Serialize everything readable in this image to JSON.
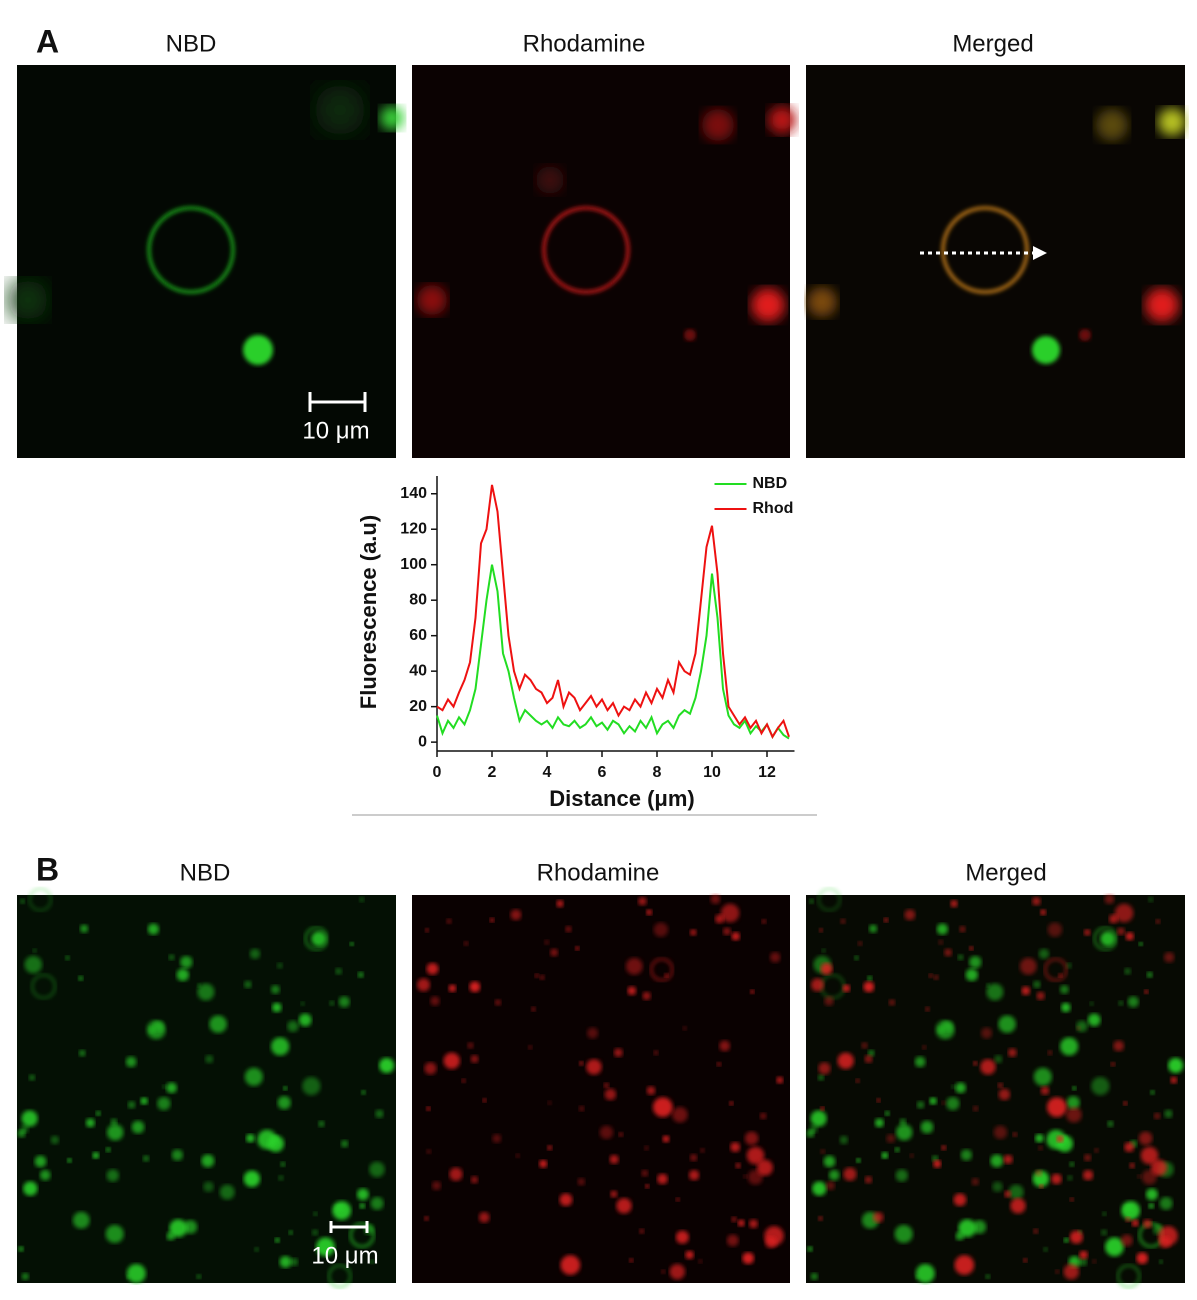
{
  "panel_a": {
    "label": "A",
    "titles": [
      "NBD",
      "Rhodamine",
      "Merged"
    ],
    "scale_bar": "10 μm"
  },
  "chart_data": {
    "type": "line",
    "x_label": "Distance (μm)",
    "y_label": "Fluorescence (a.u)",
    "x": [
      0,
      0.2,
      0.4,
      0.6,
      0.8,
      1.0,
      1.2,
      1.4,
      1.6,
      1.8,
      2.0,
      2.2,
      2.4,
      2.6,
      2.8,
      3.0,
      3.2,
      3.4,
      3.6,
      3.8,
      4.0,
      4.2,
      4.4,
      4.6,
      4.8,
      5.0,
      5.2,
      5.4,
      5.6,
      5.8,
      6.0,
      6.2,
      6.4,
      6.6,
      6.8,
      7.0,
      7.2,
      7.4,
      7.6,
      7.8,
      8.0,
      8.2,
      8.4,
      8.6,
      8.8,
      9.0,
      9.2,
      9.4,
      9.6,
      9.8,
      10.0,
      10.2,
      10.4,
      10.6,
      10.8,
      11.0,
      11.2,
      11.4,
      11.6,
      11.8,
      12.0,
      12.2,
      12.4,
      12.6,
      12.8
    ],
    "series": [
      {
        "name": "NBD",
        "color": "#22dd22",
        "values": [
          15,
          5,
          12,
          8,
          14,
          10,
          18,
          30,
          55,
          80,
          100,
          85,
          50,
          40,
          25,
          12,
          18,
          15,
          12,
          10,
          12,
          8,
          14,
          10,
          9,
          12,
          8,
          10,
          14,
          9,
          11,
          7,
          12,
          10,
          5,
          9,
          6,
          12,
          8,
          14,
          5,
          10,
          12,
          8,
          15,
          18,
          16,
          25,
          40,
          60,
          95,
          70,
          30,
          15,
          10,
          8,
          12,
          5,
          9,
          6,
          10,
          3,
          8,
          4,
          2
        ]
      },
      {
        "name": "Rhod",
        "color": "#ee1111",
        "values": [
          20,
          18,
          24,
          20,
          28,
          35,
          45,
          70,
          112,
          120,
          145,
          130,
          95,
          60,
          40,
          30,
          38,
          35,
          30,
          28,
          22,
          25,
          35,
          20,
          28,
          25,
          18,
          22,
          26,
          20,
          24,
          18,
          22,
          15,
          20,
          18,
          24,
          20,
          28,
          22,
          30,
          25,
          35,
          28,
          45,
          40,
          38,
          50,
          80,
          110,
          122,
          95,
          50,
          20,
          15,
          10,
          14,
          8,
          12,
          5,
          10,
          3,
          8,
          12,
          3
        ]
      }
    ],
    "xlim": [
      0,
      13
    ],
    "ylim": [
      -5,
      150
    ],
    "xticks": [
      0,
      2,
      4,
      6,
      8,
      10,
      12
    ],
    "yticks": [
      0,
      20,
      40,
      60,
      80,
      100,
      120,
      140
    ],
    "legend": "top-right"
  },
  "panel_b": {
    "label": "B",
    "titles": [
      "NBD",
      "Rhodamine",
      "Merged"
    ],
    "scale_bar": "10 μm"
  }
}
